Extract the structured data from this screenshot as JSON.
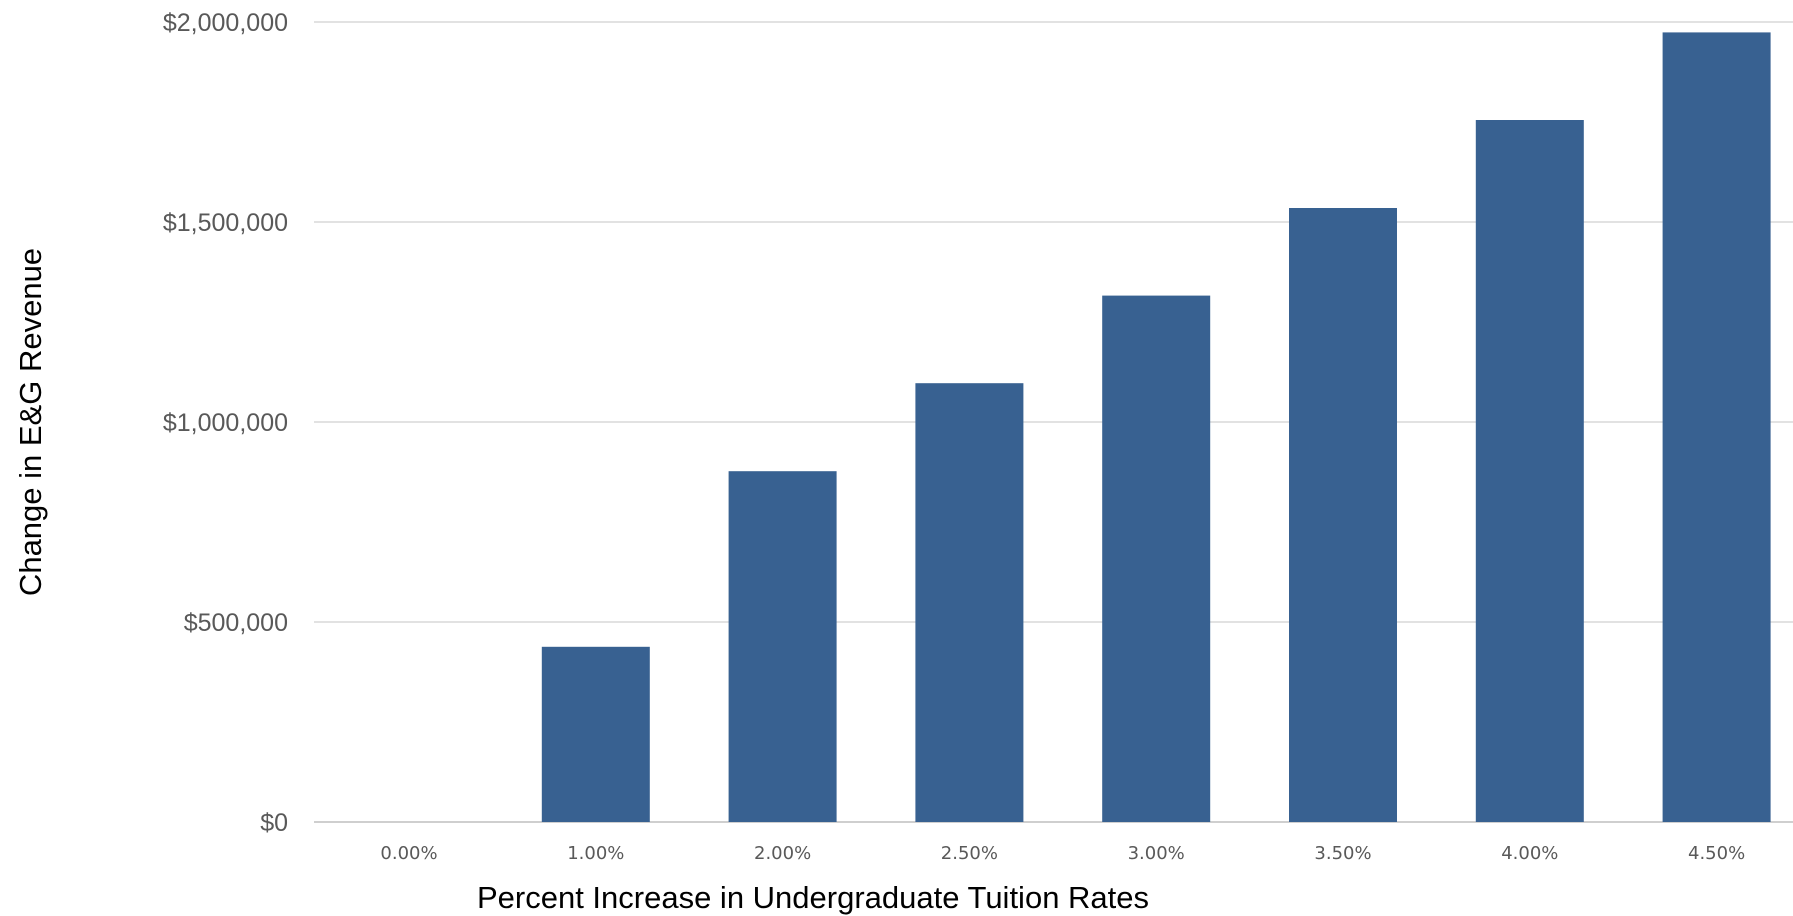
{
  "colors": {
    "bar": "#386191",
    "grid": "#d9d9d9",
    "tick_text": "#595959"
  },
  "chart_data": {
    "type": "bar",
    "title": "",
    "xlabel": "Percent Increase in Undergraduate Tuition Rates",
    "ylabel": "Change in E&G Revenue",
    "categories": [
      "0.00%",
      "1.00%",
      "2.00%",
      "2.50%",
      "3.00%",
      "3.50%",
      "4.00%",
      "4.50%"
    ],
    "values": [
      0,
      438000,
      877000,
      1097000,
      1316000,
      1535000,
      1755000,
      1974000
    ],
    "ylim": [
      0,
      2000000
    ],
    "yticks": [
      0,
      500000,
      1000000,
      1500000,
      2000000
    ],
    "ytick_labels": [
      "$0",
      "$500,000",
      "$1,000,000",
      "$1,500,000",
      "$2,000,000"
    ],
    "grid": true,
    "legend": "none"
  }
}
